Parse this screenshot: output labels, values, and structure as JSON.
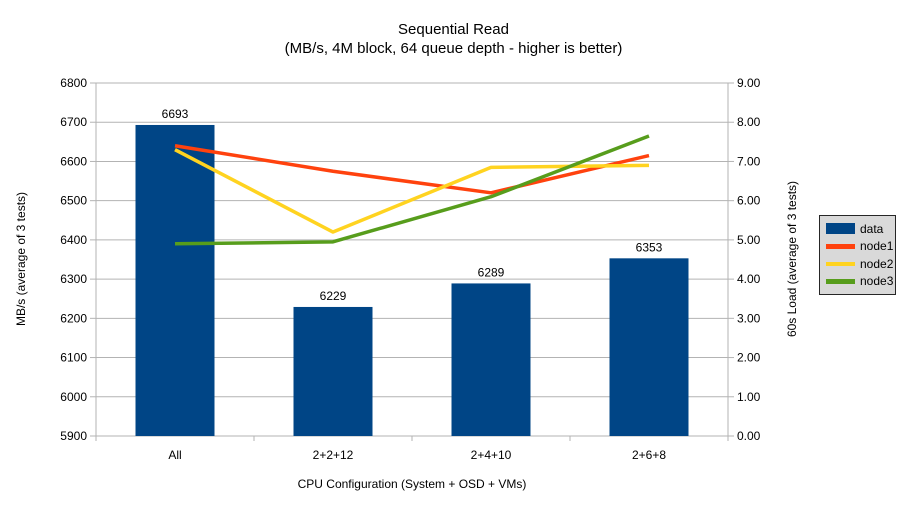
{
  "chart_data": {
    "type": "combo-bar-line",
    "title": "Sequential Read",
    "subtitle": "(MB/s, 4M block, 64 queue depth - higher is better)",
    "categories": [
      "All",
      "2+2+12",
      "2+4+10",
      "2+6+8"
    ],
    "bar_series": [
      {
        "name": "data",
        "axis": "left",
        "color": "#004586",
        "values": [
          6693,
          6229,
          6289,
          6353
        ]
      }
    ],
    "bar_value_labels": [
      "6693",
      "6229",
      "6289",
      "6353"
    ],
    "line_series": [
      {
        "name": "node1",
        "axis": "right",
        "color": "#FF420E",
        "values": [
          7.4,
          6.75,
          6.2,
          7.15
        ]
      },
      {
        "name": "node2",
        "axis": "right",
        "color": "#FFD320",
        "values": [
          7.3,
          5.2,
          6.85,
          6.9
        ]
      },
      {
        "name": "node3",
        "axis": "right",
        "color": "#579D1C",
        "values": [
          4.9,
          4.95,
          6.1,
          7.65
        ]
      }
    ],
    "xlabel": "CPU Configuration (System + OSD + VMs)",
    "ylabel_left": "MB/s (average of 3 tests)",
    "ylabel_right": "60s Load (average of 3 tests)",
    "ylim_left": [
      5900,
      6800
    ],
    "ytick_step_left": 100,
    "yticks_left": [
      5900,
      6000,
      6100,
      6200,
      6300,
      6400,
      6500,
      6600,
      6700,
      6800
    ],
    "ylim_right": [
      0,
      9
    ],
    "ytick_step_right": 1,
    "yticks_right": [
      "0.00",
      "1.00",
      "2.00",
      "3.00",
      "4.00",
      "5.00",
      "6.00",
      "7.00",
      "8.00",
      "9.00"
    ],
    "grid": "horizontal",
    "legend_position": "right",
    "colors": {
      "bar": "#004586",
      "node1": "#FF420E",
      "node2": "#FFD320",
      "node3": "#579D1C",
      "gridline": "#b3b3b3",
      "axis": "#b3b3b3",
      "text": "#000000",
      "background": "#ffffff"
    }
  },
  "legend": {
    "background": "#d9d9d9",
    "border_color": "#262626",
    "items": [
      {
        "label": "data",
        "swatch": "filled-rect",
        "color": "#004586"
      },
      {
        "label": "node1",
        "swatch": "line",
        "color": "#FF420E"
      },
      {
        "label": "node2",
        "swatch": "line",
        "color": "#FFD320"
      },
      {
        "label": "node3",
        "swatch": "line",
        "color": "#579D1C"
      }
    ]
  }
}
